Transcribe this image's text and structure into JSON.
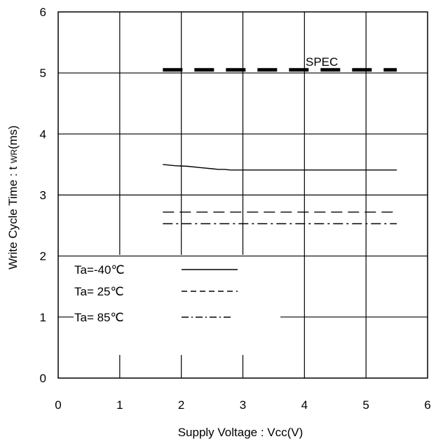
{
  "chart_data": {
    "type": "line",
    "title": "",
    "xlabel": "Supply Voltage : Vcc(V)",
    "ylabel_parts": [
      "Write Cycle Time : t ",
      "WR",
      "(ms)"
    ],
    "xlim": [
      0,
      6
    ],
    "ylim": [
      0,
      6
    ],
    "x_ticks": [
      "0",
      "1",
      "2",
      "3",
      "4",
      "5",
      "6"
    ],
    "y_ticks": [
      "0",
      "1",
      "2",
      "3",
      "4",
      "5",
      "6"
    ],
    "grid": true,
    "legend_position": "bottom-left",
    "spec": {
      "label": "SPEC",
      "x": [
        1.7,
        5.5
      ],
      "y": [
        5.05,
        5.05
      ]
    },
    "series": [
      {
        "name": "Ta=-40℃",
        "style": "solid",
        "x": [
          1.7,
          1.9,
          2.1,
          2.3,
          2.5,
          2.6,
          2.7,
          2.8,
          3.0,
          3.5,
          4.0,
          4.5,
          5.0,
          5.5
        ],
        "y": [
          3.5,
          3.48,
          3.47,
          3.45,
          3.43,
          3.42,
          3.42,
          3.41,
          3.41,
          3.41,
          3.41,
          3.41,
          3.41,
          3.41
        ]
      },
      {
        "name": "Ta= 25℃",
        "style": "dashed",
        "x": [
          1.7,
          5.5
        ],
        "y": [
          2.72,
          2.72
        ]
      },
      {
        "name": "Ta= 85℃",
        "style": "dashdot",
        "x": [
          1.7,
          5.5
        ],
        "y": [
          2.53,
          2.53
        ]
      }
    ]
  }
}
